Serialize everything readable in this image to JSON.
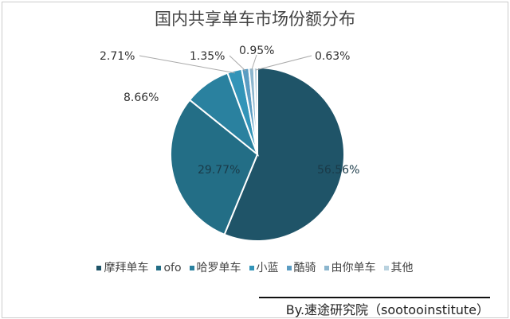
{
  "chart_data": {
    "type": "pie",
    "title": "国内共享单车市场份额分布",
    "categories": [
      "摩拜单车",
      "ofo",
      "哈罗单车",
      "小蓝",
      "酷骑",
      "由你单车",
      "其他"
    ],
    "values": [
      56.56,
      29.77,
      8.66,
      2.71,
      1.35,
      0.95,
      0.63
    ],
    "labels": [
      "56.56%",
      "29.77%",
      "8.66%",
      "2.71%",
      "1.35%",
      "0.95%",
      "0.63%"
    ],
    "colors": [
      "#1f5468",
      "#236e86",
      "#2a819f",
      "#3294b8",
      "#5b9cc2",
      "#8cb6ce",
      "#b9d2df"
    ],
    "legend": "bottom"
  },
  "source": "By.速途研究院（sootooinstitute）"
}
